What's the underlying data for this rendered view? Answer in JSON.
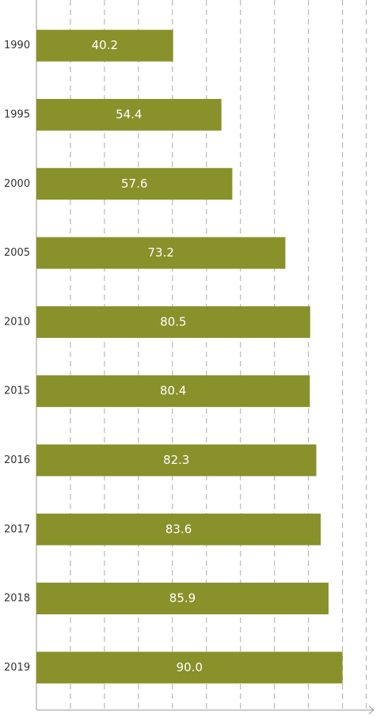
{
  "chart_data": {
    "type": "bar",
    "orientation": "horizontal",
    "categories": [
      "1990",
      "1995",
      "2000",
      "2005",
      "2010",
      "2015",
      "2016",
      "2017",
      "2018",
      "2019"
    ],
    "values": [
      40.2,
      54.4,
      57.6,
      73.2,
      80.5,
      80.4,
      82.3,
      83.6,
      85.9,
      90.0
    ],
    "value_labels": [
      "40.2",
      "54.4",
      "57.6",
      "73.2",
      "80.5",
      "80.4",
      "82.3",
      "83.6",
      "85.9",
      "90.0"
    ],
    "color": "#88912a",
    "xlim": [
      0,
      98
    ],
    "xticks": [
      10,
      20,
      30,
      40,
      50,
      60,
      70,
      80,
      90,
      97
    ],
    "grid": true
  }
}
